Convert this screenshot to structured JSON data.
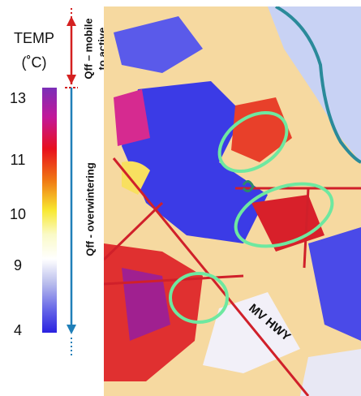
{
  "legend": {
    "title": "TEMP",
    "unit": "(˚C)",
    "ticks": [
      13,
      11,
      10,
      9,
      4
    ]
  },
  "annotations": {
    "mobile_line1": "Qff – mobile",
    "mobile_line2": "to active",
    "overwintering": "Qff - overwintering"
  },
  "map": {
    "road_label": "MV HWY"
  }
}
